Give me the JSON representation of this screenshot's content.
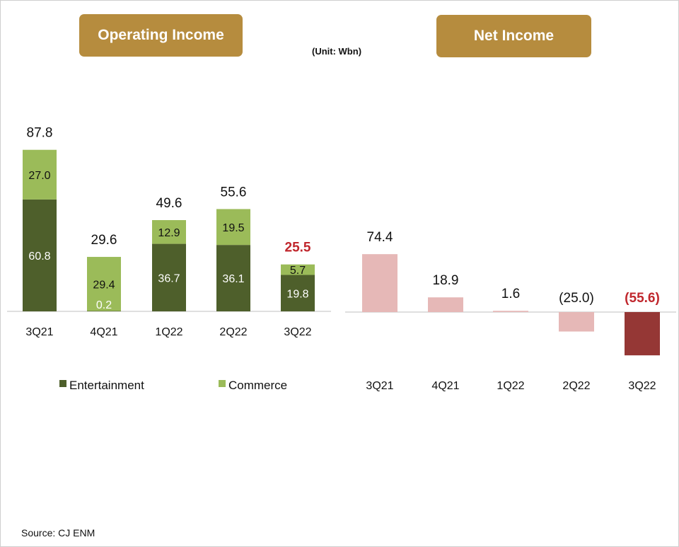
{
  "headers": {
    "operating_income": "Operating Income",
    "net_income": "Net Income",
    "unit": "(Unit: Wbn)"
  },
  "source": "Source: CJ ENM",
  "colors": {
    "header_bg": "#b68c3e",
    "entertainment": "#4e5f2b",
    "commerce": "#9bbb59",
    "net_income_positive": "#e6b8b7",
    "net_income_latest": "#953735",
    "highlight_text": "#c0272d"
  },
  "chart_data": [
    {
      "type": "bar",
      "stacked": true,
      "categories": [
        "3Q21",
        "4Q21",
        "1Q22",
        "2Q22",
        "3Q22"
      ],
      "series": [
        {
          "name": "Entertainment",
          "values": [
            60.8,
            0.2,
            36.7,
            36.1,
            19.8
          ]
        },
        {
          "name": "Commerce",
          "values": [
            27.0,
            29.4,
            12.9,
            19.5,
            5.7
          ]
        }
      ],
      "totals": [
        "87.8",
        "29.6",
        "49.6",
        "55.6",
        "25.5"
      ],
      "segment_labels": {
        "Entertainment": [
          "60.8",
          "0.2",
          "36.7",
          "36.1",
          "19.8"
        ],
        "Commerce": [
          "27.0",
          "29.4",
          "12.9",
          "19.5",
          "5.7"
        ]
      },
      "highlight_last_total": true,
      "legend": "bottom"
    },
    {
      "type": "bar",
      "categories": [
        "3Q21",
        "4Q21",
        "1Q22",
        "2Q22",
        "3Q22"
      ],
      "values": [
        74.4,
        18.9,
        1.6,
        -25.0,
        -55.6
      ],
      "value_labels": [
        "74.4",
        "18.9",
        "1.6",
        "(25.0)",
        "(55.6)"
      ],
      "highlight_last": true
    }
  ]
}
